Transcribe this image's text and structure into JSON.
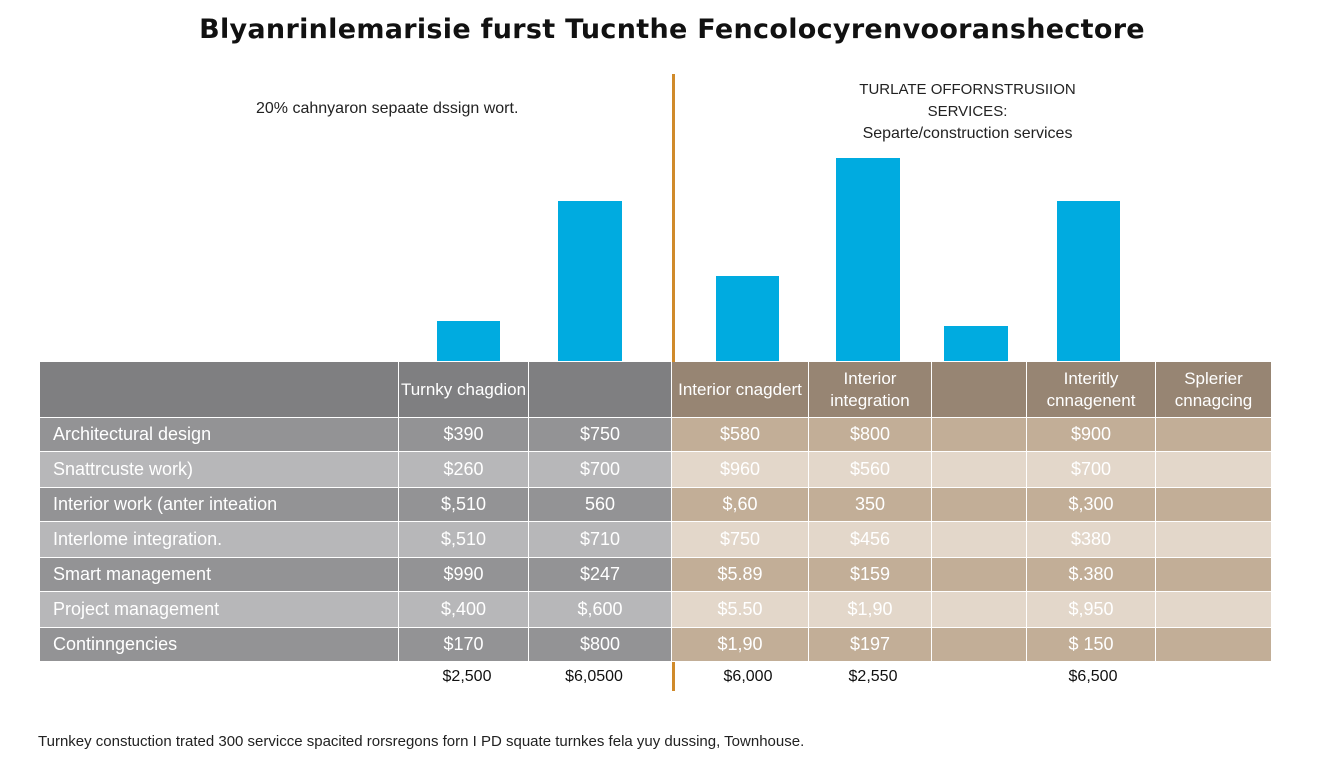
{
  "title": "Blyanrinlemarisie furst Tucnthe Fencolocyrenvooranshectore",
  "left_note": "20% cahnyaron sepaate dssign wort.",
  "right_note": {
    "line1": "TURLATE OFFORNSTRUSIION SERVICES:",
    "line2": "Separte/construction services"
  },
  "footnote": "Turnkey constuction trated 300 servicce spacited rorsregons forn I PD squate turnkes fela yuy dussing, Townhouse.",
  "colors": {
    "bar": "#00abe0",
    "divider": "#d08a2a",
    "left_header": "#7f7f81",
    "left_row_dark": "#939395",
    "left_row_light": "#b7b7b9",
    "right_header": "#978573",
    "right_row_dark": "#c2ae97",
    "right_row_light": "#e3d7ca"
  },
  "table": {
    "headers": [
      "",
      "Turnky chagdion",
      "",
      "Interior cnagdert",
      "Interior integration",
      "",
      "Interitly cnnagenent",
      "Splerier cnnagcing"
    ],
    "rows": [
      [
        "Architectural design",
        "$390",
        "$750",
        "$580",
        "$800",
        "",
        "$900",
        ""
      ],
      [
        "Snattrcuste work)",
        "$260",
        "$700",
        "$960",
        "$560",
        "",
        "$700",
        ""
      ],
      [
        "Interior work (anter inteation",
        "$,510",
        "560",
        "$,60",
        "350",
        "",
        "$,300",
        ""
      ],
      [
        "Interlome integration.",
        "$,510",
        "$710",
        "$750",
        "$456",
        "",
        "$380",
        ""
      ],
      [
        "Smart management",
        "$990",
        "$247",
        "$5.89",
        "$159",
        "",
        "$.380",
        ""
      ],
      [
        "Project management",
        "$,400",
        "$,600",
        "$5.50",
        "$1,90",
        "",
        "$,950",
        ""
      ],
      [
        "Continngencies",
        "$170",
        "$800",
        "$1,90",
        "$197",
        "",
        "$ 150",
        ""
      ]
    ],
    "totals": [
      "$2,500",
      "$6,0500",
      "$6,000",
      "$2,550",
      "$6,500"
    ]
  },
  "chart_data": {
    "type": "bar",
    "title": "Blyanrinlemarisie furst Tucnthe Fencolocyrenvooranshectore",
    "categories": [
      "Turnky chagdion",
      "",
      "Interior cnagdert",
      "Interior integration",
      "",
      "Interitly cnnagenent"
    ],
    "values": [
      40,
      160,
      85,
      203,
      35,
      160
    ],
    "ylim": [
      0,
      220
    ],
    "grid": false,
    "legend": "none"
  }
}
